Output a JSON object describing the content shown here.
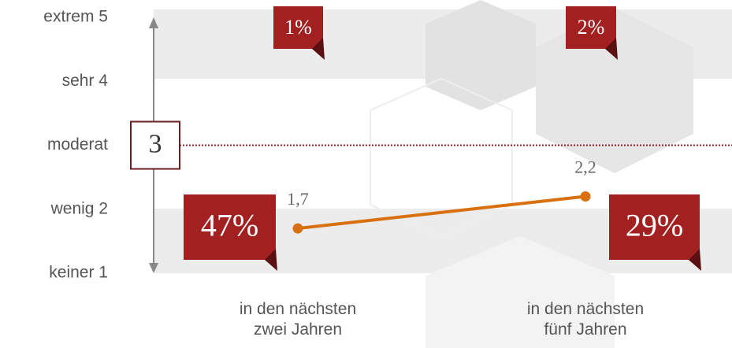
{
  "chart_data": {
    "type": "line",
    "categories": [
      "in den nächsten\nzwei Jahren",
      "in den nächsten\nfünf Jahren"
    ],
    "series": [
      {
        "color": "#d9700f",
        "values": [
          1.7,
          2.2
        ],
        "value_labels": [
          "1,7",
          "2,2"
        ]
      }
    ],
    "ylim": [
      1,
      5
    ],
    "yticks": [
      {
        "value": 5,
        "label": "extrem 5"
      },
      {
        "value": 4,
        "label": "sehr 4"
      },
      {
        "value": 3,
        "label": "moderat"
      },
      {
        "value": 2,
        "label": "wenig 2"
      },
      {
        "value": 1,
        "label": "keiner 1"
      }
    ],
    "reference_line": {
      "value": 3,
      "color": "#8b2323"
    },
    "top_shares": {
      "color": "#a32020",
      "values": [
        1,
        2
      ],
      "value_labels": [
        "1%",
        "2%"
      ]
    },
    "bottom_shares": {
      "color": "#a32020",
      "values": [
        47,
        29
      ],
      "value_labels": [
        "47%",
        "29%"
      ]
    }
  }
}
